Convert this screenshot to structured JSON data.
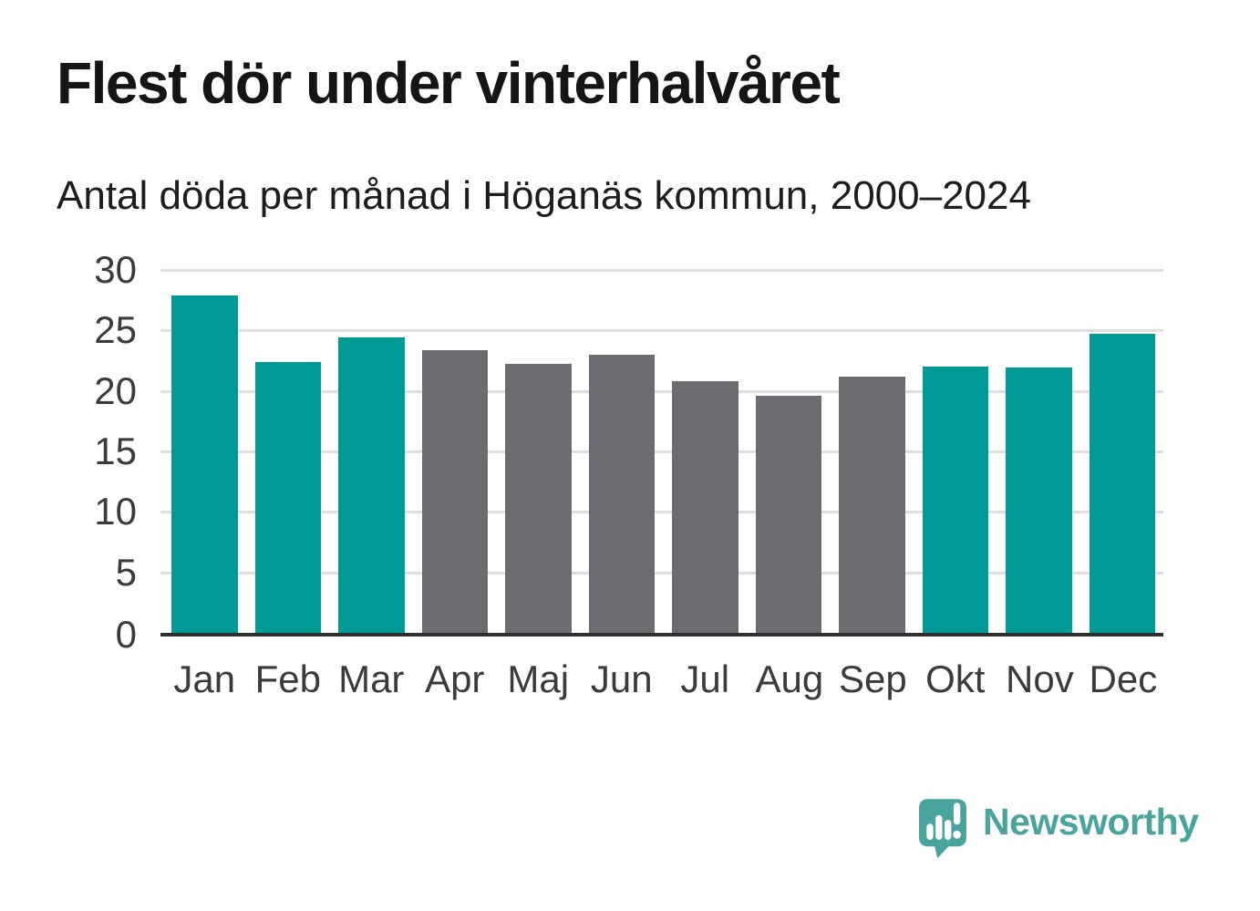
{
  "header": {
    "title": "Flest dör under vinterhalvåret",
    "subtitle": "Antal döda per månad i Höganäs kommun, 2000–2024"
  },
  "chart_data": {
    "type": "bar",
    "title": "Flest dör under vinterhalvåret",
    "subtitle": "Antal döda per månad i Höganäs kommun, 2000–2024",
    "categories": [
      "Jan",
      "Feb",
      "Mar",
      "Apr",
      "Maj",
      "Jun",
      "Jul",
      "Aug",
      "Sep",
      "Okt",
      "Nov",
      "Dec"
    ],
    "values": [
      27.9,
      22.4,
      24.4,
      23.4,
      22.2,
      23.0,
      20.8,
      19.6,
      21.2,
      22.0,
      21.9,
      24.7
    ],
    "bar_seasons": [
      "winter",
      "winter",
      "winter",
      "summer",
      "summer",
      "summer",
      "summer",
      "summer",
      "summer",
      "winter",
      "winter",
      "winter"
    ],
    "xlabel": "",
    "ylabel": "",
    "ylim": [
      0,
      30
    ],
    "yticks": [
      0,
      5,
      10,
      15,
      20,
      25,
      30
    ],
    "grid": true,
    "legend": false
  },
  "colors": {
    "winter_bar": "#009a94",
    "summer_bar": "#6c6b70",
    "gridline": "#dedede",
    "axis": "#2e2e2e",
    "tick_text": "#3b3b3b",
    "brand": "#4aa49e"
  },
  "footer": {
    "brand_name": "Newsworthy",
    "brand_icon": "newsworthy-speech-bubble-bar-chart-icon"
  }
}
